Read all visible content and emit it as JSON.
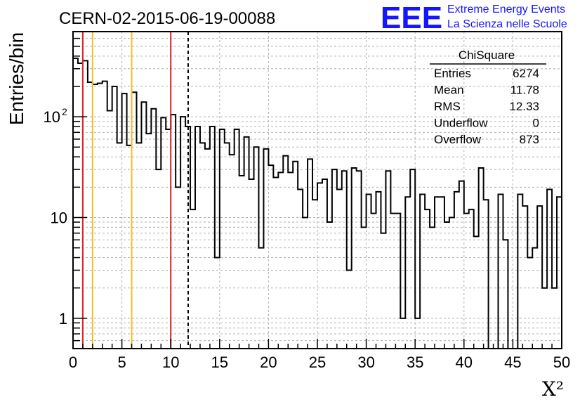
{
  "chart_data": {
    "type": "bar",
    "style": "step-histogram",
    "title": "CERN-02-2015-06-19-00088",
    "xlabel": "X²",
    "ylabel": "Entries/bin",
    "xlim": [
      0,
      50
    ],
    "ylim": [
      0.5,
      700
    ],
    "yscale": "log",
    "grid": true,
    "bin_width": 0.5,
    "values": [
      380,
      340,
      360,
      220,
      210,
      215,
      225,
      115,
      200,
      55,
      170,
      52,
      175,
      55,
      140,
      68,
      120,
      30,
      98,
      75,
      105,
      20,
      100,
      80,
      12,
      80,
      55,
      48,
      80,
      4,
      75,
      55,
      42,
      75,
      26,
      63,
      24,
      50,
      5,
      48,
      33,
      25,
      28,
      41,
      28,
      36,
      19,
      10,
      38,
      15,
      22,
      24,
      9,
      30,
      19,
      29,
      3,
      31,
      29,
      8,
      17,
      11,
      18,
      7,
      29,
      11,
      11,
      1,
      16,
      30,
      1,
      17,
      12,
      8,
      16,
      16,
      9,
      10,
      18,
      23,
      11,
      12,
      6.5,
      31,
      15,
      0.1,
      0.1,
      17,
      6,
      0.1,
      0.1,
      17,
      13,
      4,
      5,
      13,
      2,
      19,
      2,
      16
    ],
    "vertical_lines": [
      {
        "x": 1,
        "color": "#e02020",
        "style": "solid"
      },
      {
        "x": 2,
        "color": "#f0c020",
        "style": "solid"
      },
      {
        "x": 6,
        "color": "#f0c020",
        "style": "solid"
      },
      {
        "x": 10,
        "color": "#e02020",
        "style": "solid"
      },
      {
        "x": 11.78,
        "color": "#000000",
        "style": "dashed"
      }
    ],
    "x_ticks": [
      "0",
      "5",
      "10",
      "15",
      "20",
      "25",
      "30",
      "35",
      "40",
      "45",
      "50"
    ],
    "y_ticks": [
      {
        "value": 1,
        "label": "1"
      },
      {
        "value": 10,
        "label": "10"
      },
      {
        "value": 100,
        "label": "10",
        "sup": "2"
      }
    ],
    "stats_box": {
      "title": "ChiSquare",
      "rows": [
        {
          "label": "Entries",
          "value": "6274"
        },
        {
          "label": "Mean",
          "value": "11.78"
        },
        {
          "label": "RMS",
          "value": "12.33"
        },
        {
          "label": "Underflow",
          "value": "0"
        },
        {
          "label": "Overflow",
          "value": "873"
        }
      ]
    }
  },
  "logo": {
    "text": "EEE",
    "line1": "Extreme Energy Events",
    "line2": "La Scienza nelle Scuole",
    "color": "#1515ff"
  }
}
